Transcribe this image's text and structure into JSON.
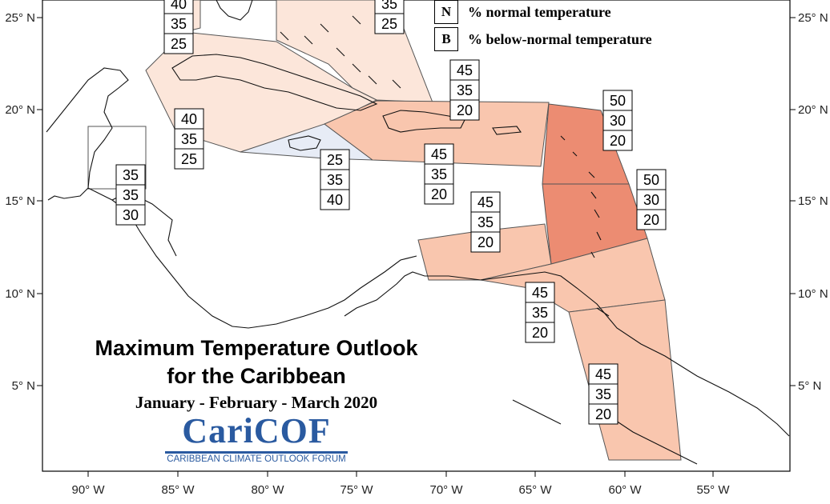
{
  "title": {
    "line1": "Maximum Temperature Outlook",
    "line2": "for the Caribbean",
    "period": "January - February - March 2020"
  },
  "logo": {
    "name": "CariCOF",
    "tagline": "CARIBBEAN CLIMATE OUTLOOK FORUM"
  },
  "legend": [
    {
      "key": "N",
      "label": "% normal temperature"
    },
    {
      "key": "B",
      "label": "% below-normal temperature"
    }
  ],
  "axes": {
    "longitude_labels": [
      "90° W",
      "85° W",
      "80° W",
      "75° W",
      "70° W",
      "65° W",
      "60° W",
      "55° W"
    ],
    "latitude_labels": [
      "25° N",
      "20° N",
      "15° N",
      "10° N",
      "5° N"
    ]
  },
  "colors": {
    "above_40": "#fce6da",
    "above_45": "#f9c6ae",
    "above_50": "#ec8c72",
    "below_40": "#e7ecf6",
    "outline": "#555555"
  },
  "forecast_boxes": [
    {
      "id": "bahamas-north-west",
      "values": [
        "40",
        "35",
        "25"
      ]
    },
    {
      "id": "bahamas-east",
      "values": [
        "35",
        "25"
      ]
    },
    {
      "id": "hispaniola-east",
      "values": [
        "45",
        "35",
        "20"
      ]
    },
    {
      "id": "leeward-islands",
      "values": [
        "50",
        "30",
        "20"
      ]
    },
    {
      "id": "cuba",
      "values": [
        "40",
        "35",
        "25"
      ]
    },
    {
      "id": "hispaniola-south",
      "values": [
        "45",
        "35",
        "20"
      ]
    },
    {
      "id": "jamaica",
      "values": [
        "25",
        "35",
        "40"
      ]
    },
    {
      "id": "belize",
      "values": [
        "35",
        "35",
        "30"
      ]
    },
    {
      "id": "windward-islands",
      "values": [
        "50",
        "30",
        "20"
      ]
    },
    {
      "id": "abc-islands",
      "values": [
        "45",
        "35",
        "20"
      ]
    },
    {
      "id": "trinidad-tobago",
      "values": [
        "45",
        "35",
        "20"
      ]
    },
    {
      "id": "guianas",
      "values": [
        "45",
        "35",
        "20"
      ]
    }
  ]
}
